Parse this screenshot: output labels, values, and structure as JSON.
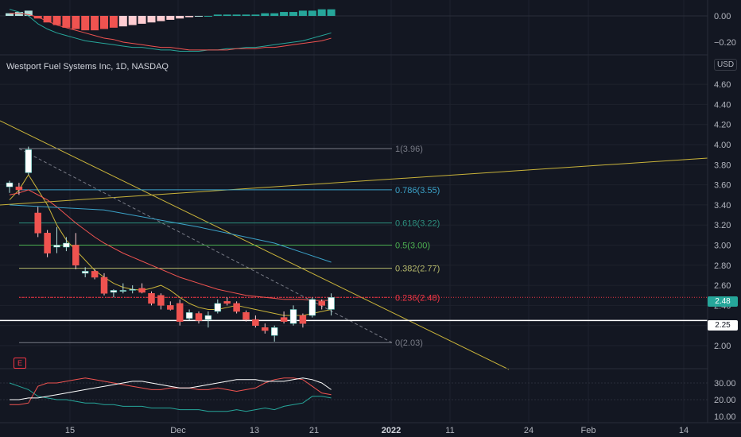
{
  "window": {
    "instrument_title": "Westport Fuel Systems Inc, 1D, NASDAQ",
    "currency": "USD",
    "logo_icon": "tradingview-e-icon"
  },
  "colors": {
    "background": "#131722",
    "grid": "#1e222d",
    "up": "#26a69a",
    "down": "#ef5350",
    "trendline": "#c9b33a",
    "fib_line": "#787b86",
    "fib_0786": "#3ba2c8",
    "fib_0618": "#2c8f7e",
    "fib_05": "#4caf50",
    "fib_0236": "#f23645",
    "macd_line": "#2196f3",
    "signal_line": "#ff6d00",
    "sma_short": "#c9b33a",
    "sma_mid": "#ef5350",
    "sma_long": "#3ba2c8"
  },
  "price_tags": [
    {
      "label": "2.48",
      "bg": "#26a69a",
      "fg": "#ffffff"
    },
    {
      "label": "2.25",
      "bg": "#ffffff",
      "fg": "#131722"
    }
  ],
  "macd_axis": [
    "0.00",
    "−0.20"
  ],
  "price_axis": [
    "4.60",
    "4.40",
    "4.20",
    "4.00",
    "3.80",
    "3.60",
    "3.40",
    "3.20",
    "3.00",
    "2.80",
    "2.60",
    "2.40",
    "2.20",
    "2.00"
  ],
  "osc_axis": [
    "30.00",
    "20.00",
    "10.00"
  ],
  "time_axis": [
    {
      "label": "15",
      "bold": false
    },
    {
      "label": "Dec",
      "bold": false
    },
    {
      "label": "13",
      "bold": false
    },
    {
      "label": "21",
      "bold": false
    },
    {
      "label": "2022",
      "bold": true
    },
    {
      "label": "11",
      "bold": false
    },
    {
      "label": "24",
      "bold": false
    },
    {
      "label": "Feb",
      "bold": false
    },
    {
      "label": "14",
      "bold": false
    }
  ],
  "fib_levels": [
    {
      "label": "1(3.96)",
      "value": 3.96,
      "color": "#787b86"
    },
    {
      "label": "0.786(3.55)",
      "value": 3.55,
      "color": "#3ba2c8"
    },
    {
      "label": "0.618(3.22)",
      "value": 3.22,
      "color": "#2c8f7e"
    },
    {
      "label": "0.5(3.00)",
      "value": 3.0,
      "color": "#4caf50"
    },
    {
      "label": "0.382(2.77)",
      "value": 2.77,
      "color": "#b5b86b"
    },
    {
      "label": "0.236(2.48)",
      "value": 2.48,
      "color": "#f23645"
    },
    {
      "label": "0(2.03)",
      "value": 2.03,
      "color": "#787b86"
    }
  ],
  "chart_data": {
    "type": "candlestick",
    "candles": [
      {
        "o": 3.58,
        "h": 3.64,
        "l": 3.52,
        "c": 3.62
      },
      {
        "o": 3.58,
        "h": 3.62,
        "l": 3.5,
        "c": 3.55
      },
      {
        "o": 3.72,
        "h": 3.98,
        "l": 3.7,
        "c": 3.95
      },
      {
        "o": 3.32,
        "h": 3.38,
        "l": 3.08,
        "c": 3.12
      },
      {
        "o": 3.12,
        "h": 3.15,
        "l": 2.88,
        "c": 2.92
      },
      {
        "o": 2.98,
        "h": 3.18,
        "l": 2.92,
        "c": 3.0
      },
      {
        "o": 2.98,
        "h": 3.08,
        "l": 2.94,
        "c": 3.02
      },
      {
        "o": 3.0,
        "h": 3.12,
        "l": 2.76,
        "c": 2.8
      },
      {
        "o": 2.72,
        "h": 2.78,
        "l": 2.68,
        "c": 2.74
      },
      {
        "o": 2.74,
        "h": 2.76,
        "l": 2.66,
        "c": 2.68
      },
      {
        "o": 2.68,
        "h": 2.72,
        "l": 2.5,
        "c": 2.52
      },
      {
        "o": 2.53,
        "h": 2.56,
        "l": 2.48,
        "c": 2.55
      },
      {
        "o": 2.54,
        "h": 2.62,
        "l": 2.52,
        "c": 2.55
      },
      {
        "o": 2.55,
        "h": 2.6,
        "l": 2.52,
        "c": 2.56
      },
      {
        "o": 2.57,
        "h": 2.62,
        "l": 2.52,
        "c": 2.53
      },
      {
        "o": 2.52,
        "h": 2.54,
        "l": 2.4,
        "c": 2.42
      },
      {
        "o": 2.5,
        "h": 2.52,
        "l": 2.36,
        "c": 2.4
      },
      {
        "o": 2.4,
        "h": 2.44,
        "l": 2.35,
        "c": 2.36
      },
      {
        "o": 2.42,
        "h": 2.46,
        "l": 2.2,
        "c": 2.24
      },
      {
        "o": 2.27,
        "h": 2.36,
        "l": 2.25,
        "c": 2.33
      },
      {
        "o": 2.32,
        "h": 2.34,
        "l": 2.22,
        "c": 2.25
      },
      {
        "o": 2.26,
        "h": 2.34,
        "l": 2.18,
        "c": 2.3
      },
      {
        "o": 2.34,
        "h": 2.46,
        "l": 2.32,
        "c": 2.42
      },
      {
        "o": 2.44,
        "h": 2.48,
        "l": 2.4,
        "c": 2.42
      },
      {
        "o": 2.42,
        "h": 2.44,
        "l": 2.32,
        "c": 2.34
      },
      {
        "o": 2.33,
        "h": 2.35,
        "l": 2.24,
        "c": 2.26
      },
      {
        "o": 2.26,
        "h": 2.3,
        "l": 2.18,
        "c": 2.2
      },
      {
        "o": 2.18,
        "h": 2.22,
        "l": 2.12,
        "c": 2.15
      },
      {
        "o": 2.1,
        "h": 2.2,
        "l": 2.04,
        "c": 2.18
      },
      {
        "o": 2.28,
        "h": 2.34,
        "l": 2.22,
        "c": 2.24
      },
      {
        "o": 2.22,
        "h": 2.4,
        "l": 2.2,
        "c": 2.36
      },
      {
        "o": 2.3,
        "h": 2.32,
        "l": 2.18,
        "c": 2.22
      },
      {
        "o": 2.3,
        "h": 2.48,
        "l": 2.28,
        "c": 2.46
      },
      {
        "o": 2.44,
        "h": 2.46,
        "l": 2.36,
        "c": 2.4
      },
      {
        "o": 2.36,
        "h": 2.52,
        "l": 2.3,
        "c": 2.48
      }
    ],
    "sma_short": [
      3.45,
      3.55,
      3.7,
      3.55,
      3.4,
      3.2,
      3.05,
      2.95,
      2.85,
      2.75,
      2.68,
      2.62,
      2.58,
      2.56,
      2.55,
      2.57,
      2.6,
      2.55,
      2.48,
      2.42,
      2.38,
      2.36,
      2.36,
      2.38,
      2.4,
      2.38,
      2.36,
      2.34,
      2.32,
      2.3,
      2.3,
      2.3,
      2.32,
      2.34,
      2.36
    ],
    "sma_mid": [
      3.5,
      3.52,
      3.55,
      3.5,
      3.45,
      3.38,
      3.3,
      3.22,
      3.15,
      3.08,
      3.02,
      2.97,
      2.92,
      2.88,
      2.84,
      2.8,
      2.76,
      2.72,
      2.68,
      2.65,
      2.62,
      2.59,
      2.56,
      2.54,
      2.52,
      2.5,
      2.49,
      2.48,
      2.47,
      2.46,
      2.46,
      2.46,
      2.45,
      2.45,
      2.45
    ],
    "sma_long_points": [
      [
        0,
        3.4
      ],
      [
        10,
        3.35
      ],
      [
        20,
        3.18
      ],
      [
        28,
        3.02
      ],
      [
        34,
        2.83
      ]
    ],
    "macd_hist": [
      0.02,
      0.03,
      0.04,
      -0.02,
      -0.05,
      -0.07,
      -0.09,
      -0.1,
      -0.11,
      -0.11,
      -0.1,
      -0.09,
      -0.08,
      -0.07,
      -0.06,
      -0.05,
      -0.04,
      -0.03,
      -0.02,
      -0.01,
      0.0,
      0.0,
      0.01,
      0.01,
      0.01,
      0.01,
      0.01,
      0.02,
      0.02,
      0.03,
      0.03,
      0.04,
      0.04,
      0.05,
      0.05
    ],
    "macd_line": [
      0.05,
      0.03,
      0.0,
      -0.06,
      -0.1,
      -0.13,
      -0.15,
      -0.17,
      -0.19,
      -0.2,
      -0.21,
      -0.22,
      -0.23,
      -0.24,
      -0.24,
      -0.25,
      -0.26,
      -0.26,
      -0.27,
      -0.27,
      -0.27,
      -0.26,
      -0.26,
      -0.25,
      -0.25,
      -0.24,
      -0.24,
      -0.23,
      -0.22,
      -0.21,
      -0.2,
      -0.19,
      -0.17,
      -0.15,
      -0.13
    ],
    "signal_line": [
      0.02,
      0.02,
      0.01,
      -0.01,
      -0.04,
      -0.07,
      -0.09,
      -0.11,
      -0.13,
      -0.15,
      -0.17,
      -0.18,
      -0.2,
      -0.21,
      -0.22,
      -0.23,
      -0.24,
      -0.24,
      -0.25,
      -0.26,
      -0.26,
      -0.26,
      -0.26,
      -0.26,
      -0.25,
      -0.25,
      -0.25,
      -0.24,
      -0.24,
      -0.23,
      -0.22,
      -0.21,
      -0.2,
      -0.19,
      -0.17
    ],
    "osc_white": [
      20,
      20,
      21,
      21,
      22,
      23,
      24,
      25,
      26,
      27,
      28,
      29,
      30,
      31,
      31,
      30,
      29,
      28,
      27,
      27,
      28,
      29,
      30,
      31,
      32,
      32,
      32,
      31,
      31,
      31,
      32,
      33,
      32,
      30,
      26
    ],
    "osc_red": [
      17,
      17,
      18,
      28,
      30,
      30,
      31,
      32,
      33,
      32,
      31,
      30,
      29,
      28,
      27,
      26,
      26,
      27,
      27,
      27,
      26,
      26,
      27,
      26,
      25,
      26,
      27,
      30,
      32,
      33,
      33,
      32,
      28,
      24,
      23
    ],
    "osc_green": [
      30,
      28,
      26,
      22,
      21,
      20,
      20,
      19,
      18,
      18,
      17,
      17,
      16,
      16,
      16,
      15,
      15,
      15,
      14,
      14,
      14,
      13,
      13,
      13,
      14,
      13,
      14,
      15,
      14,
      16,
      17,
      18,
      22,
      22,
      21
    ]
  }
}
